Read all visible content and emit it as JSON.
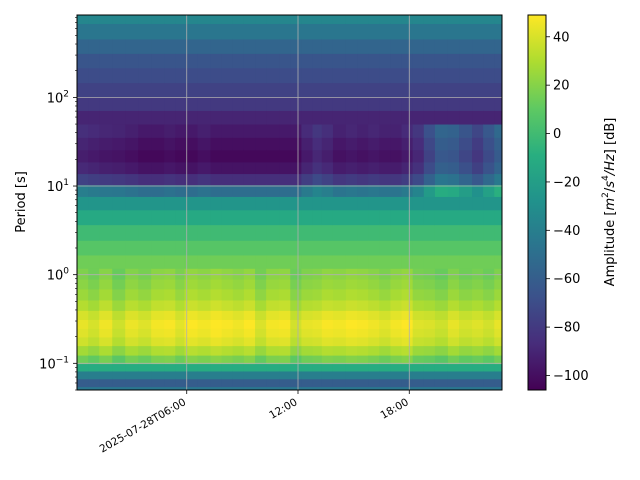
{
  "chart_data": {
    "type": "heatmap",
    "title": "",
    "xlabel": "",
    "ylabel": "Period [s]",
    "y_scale": "log",
    "x_range": [
      "2025-07-28T00:05:00",
      "2025-07-28T23:00:00"
    ],
    "ylim": [
      0.05,
      850
    ],
    "x_ticks": [
      {
        "value": "2025-07-28T06:00:00",
        "label": "2025-07-28T06:00"
      },
      {
        "value": "2025-07-28T12:00:00",
        "label": "12:00"
      },
      {
        "value": "2025-07-28T18:00:00",
        "label": "18:00"
      }
    ],
    "y_ticks": [
      {
        "value": 0.1,
        "label": "10",
        "exp": "−1"
      },
      {
        "value": 1,
        "label": "10",
        "exp": "0"
      },
      {
        "value": 10,
        "label": "10",
        "exp": "1"
      },
      {
        "value": 100,
        "label": "10",
        "exp": "2"
      }
    ],
    "grid": true,
    "colormap": "viridis",
    "colorbar": {
      "label": "Amplitude [m²/s⁴/Hz] [dB]",
      "label_parts": {
        "prefix": "Amplitude [",
        "m": "m",
        "m_exp": "2",
        "mid": "/",
        "s": "s",
        "s_exp": "4",
        "hz": "/Hz",
        "suffix": "] [dB]"
      },
      "range": [
        -106,
        49
      ],
      "ticks": [
        -100,
        -80,
        -60,
        -40,
        -20,
        0,
        20,
        40
      ]
    },
    "periods": [
      0.05,
      0.06,
      0.075,
      0.09,
      0.11,
      0.14,
      0.18,
      0.22,
      0.28,
      0.35,
      0.45,
      0.6,
      0.8,
      1.0,
      1.4,
      2.0,
      3.0,
      4.5,
      6.5,
      9.0,
      12,
      16,
      22,
      30,
      42,
      60,
      85,
      120,
      180,
      260,
      380,
      550,
      850
    ],
    "profile_db": [
      -45,
      -60,
      -40,
      -10,
      15,
      28,
      38,
      42,
      44,
      40,
      32,
      26,
      22,
      19,
      15,
      8,
      0,
      -12,
      -25,
      -50,
      -85,
      -98,
      -103,
      -100,
      -95,
      -90,
      -80,
      -75,
      -70,
      -65,
      -55,
      -45,
      -35
    ],
    "hour_offsets": [
      0,
      0.6,
      1.2,
      1.9,
      2.6,
      3.3,
      4.0,
      4.7,
      5.3,
      5.8,
      6.5,
      7.2,
      7.8,
      8.4,
      9.0,
      9.6,
      10.2,
      10.9,
      11.5,
      12.1,
      12.7,
      13.2,
      13.8,
      14.5,
      15.1,
      15.7,
      16.3,
      16.9,
      17.5,
      18.1,
      18.7,
      19.3,
      20.0,
      20.6,
      21.3,
      21.9,
      22.5
    ],
    "hour_peak_offset_db": [
      0,
      -4,
      2,
      -6,
      1,
      -2,
      3,
      4,
      -1,
      5,
      3,
      6,
      4,
      2,
      5,
      -3,
      3,
      4,
      -5,
      0,
      1,
      4,
      3,
      5,
      4,
      2,
      -1,
      3,
      5,
      -2,
      -3,
      -6,
      0,
      -4,
      -2,
      -5,
      0
    ],
    "hour_microseism_offset_db": [
      10,
      8,
      6,
      5,
      3,
      0,
      0,
      2,
      0,
      0,
      3,
      0,
      0,
      0,
      0,
      0,
      0,
      0,
      0,
      8,
      14,
      10,
      4,
      6,
      4,
      6,
      4,
      4,
      8,
      14,
      28,
      40,
      38,
      30,
      22,
      32,
      42
    ]
  }
}
